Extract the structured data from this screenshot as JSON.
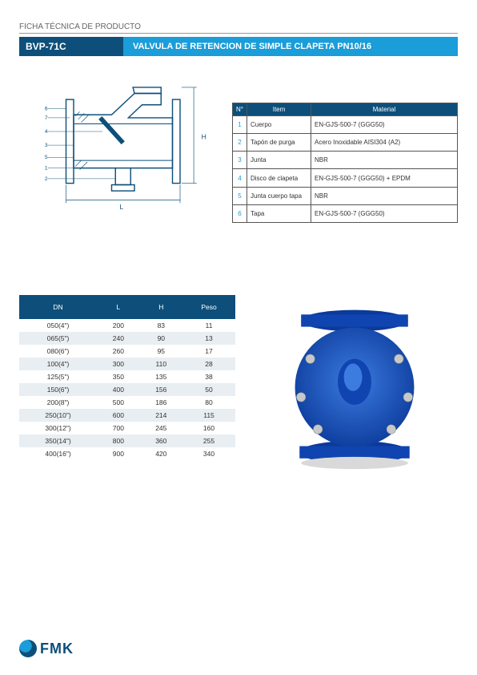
{
  "header": {
    "doc_label": "FICHA TÉCNICA DE PRODUCTO",
    "code": "BVP-71C",
    "title": "VALVULA DE RETENCION DE SIMPLE CLAPETA PN10/16"
  },
  "colors": {
    "brand_dark": "#0d4f7a",
    "brand_light": "#1a9dd9",
    "stripe": "#e8eef2",
    "border": "#555555",
    "text": "#333333",
    "valve_blue": "#1455c0",
    "valve_highlight": "#3c7be0",
    "bolt": "#c8c8c8"
  },
  "materials": {
    "headers": [
      "N°",
      "Item",
      "Material"
    ],
    "rows": [
      [
        "1",
        "Cuerpo",
        "EN-GJS-500-7 (GGG50)"
      ],
      [
        "2",
        "Tapón de purga",
        "Acero Inoxidable AISI304 (A2)"
      ],
      [
        "3",
        "Junta",
        "NBR"
      ],
      [
        "4",
        "Disco de clapeta",
        "EN-GJS-500-7 (GGG50) + EPDM"
      ],
      [
        "5",
        "Junta cuerpo tapa",
        "NBR"
      ],
      [
        "6",
        "Tapa",
        "EN-GJS-500-7 (GGG50)"
      ]
    ]
  },
  "dimensions": {
    "headers": [
      "DN",
      "L",
      "H",
      "Peso"
    ],
    "rows": [
      [
        "050(4\")",
        "200",
        "83",
        "11"
      ],
      [
        "065(5\")",
        "240",
        "90",
        "13"
      ],
      [
        "080(6\")",
        "260",
        "95",
        "17"
      ],
      [
        "100(4\")",
        "300",
        "110",
        "28"
      ],
      [
        "125(5\")",
        "350",
        "135",
        "38"
      ],
      [
        "150(6\")",
        "400",
        "156",
        "50"
      ],
      [
        "200(8\")",
        "500",
        "186",
        "80"
      ],
      [
        "250(10\")",
        "600",
        "214",
        "115"
      ],
      [
        "300(12\")",
        "700",
        "245",
        "160"
      ],
      [
        "350(14\")",
        "800",
        "360",
        "255"
      ],
      [
        "400(16\")",
        "900",
        "420",
        "340"
      ]
    ]
  },
  "diagram": {
    "labels": [
      "6",
      "7",
      "4",
      "3",
      "5",
      "1",
      "2"
    ],
    "dim_L": "L",
    "dim_H": "H"
  },
  "logo": {
    "text": "FMK"
  }
}
